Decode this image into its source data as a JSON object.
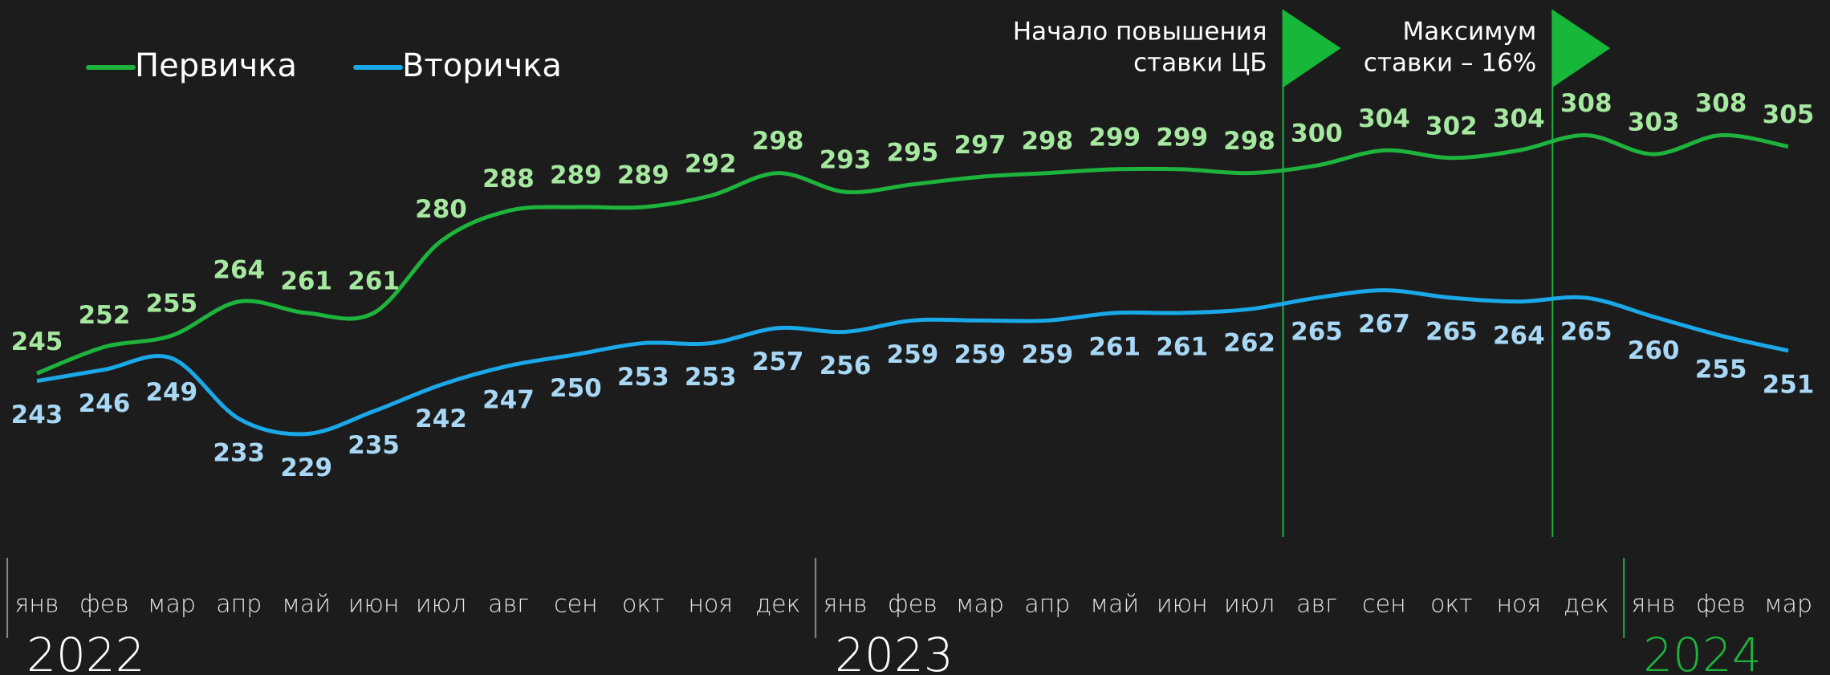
{
  "chart_data": {
    "type": "line",
    "categories": [
      "янв",
      "фев",
      "мар",
      "апр",
      "май",
      "июн",
      "июл",
      "авг",
      "сен",
      "окт",
      "ноя",
      "дек",
      "янв",
      "фев",
      "мар",
      "апр",
      "май",
      "июн",
      "июл",
      "авг",
      "сен",
      "окт",
      "ноя",
      "дек",
      "янв",
      "фев",
      "мар"
    ],
    "years": [
      "2022",
      "2023",
      "2024"
    ],
    "series": [
      {
        "name": "Первичка",
        "color": "#1db33c",
        "label_color": "#a6e8a0",
        "values": [
          245,
          252,
          255,
          264,
          261,
          261,
          280,
          288,
          289,
          289,
          292,
          298,
          293,
          295,
          297,
          298,
          299,
          299,
          298,
          300,
          304,
          302,
          304,
          308,
          303,
          308,
          305
        ]
      },
      {
        "name": "Вторичка",
        "color": "#1aa8e8",
        "label_color": "#a8d8f5",
        "values": [
          243,
          246,
          249,
          233,
          229,
          235,
          242,
          247,
          250,
          253,
          253,
          257,
          256,
          259,
          259,
          259,
          261,
          261,
          262,
          265,
          267,
          265,
          264,
          265,
          260,
          255,
          251
        ]
      }
    ],
    "ylim": [
      220,
      320
    ],
    "annotations": [
      {
        "x": 18.5,
        "text": [
          "Начало повышения",
          "ставки ЦБ"
        ]
      },
      {
        "x": 22.5,
        "text": [
          "Максимум",
          "ставки – 16%"
        ]
      }
    ]
  }
}
